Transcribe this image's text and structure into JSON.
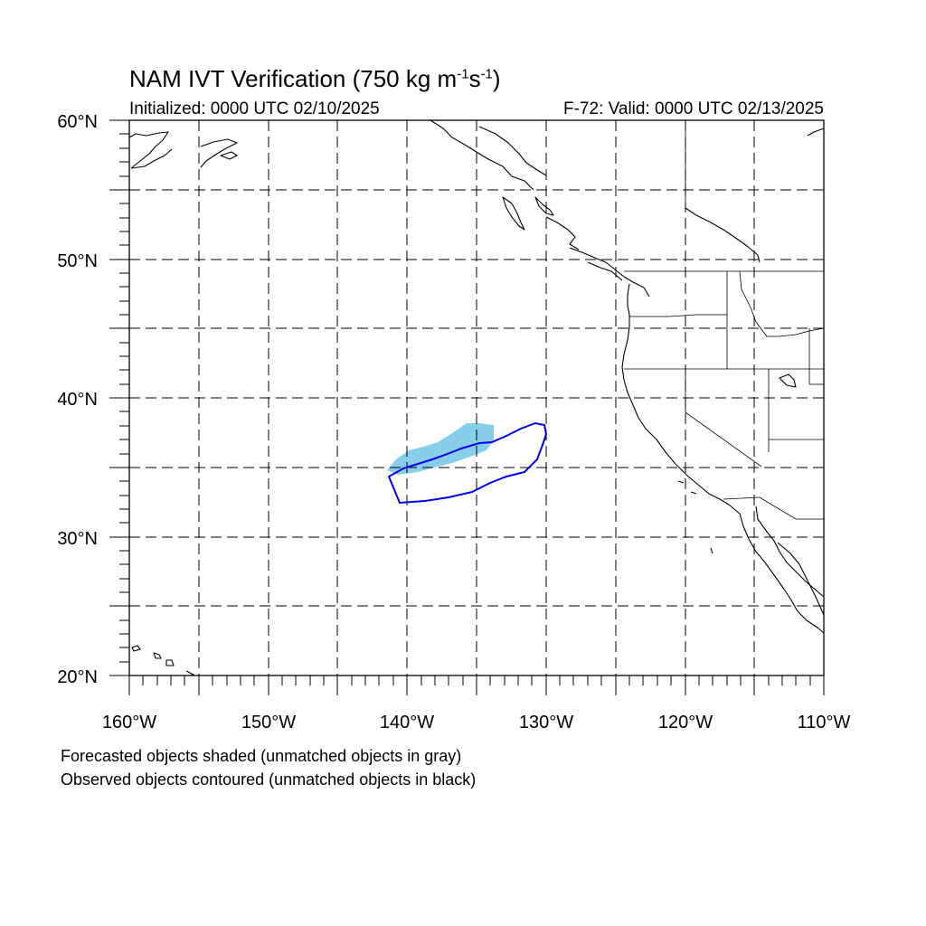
{
  "title": {
    "main": "NAM IVT Verification (750 kg m",
    "exp1": "-1",
    "mid": "s",
    "exp2": "-1",
    "close": ")"
  },
  "initialized": "Initialized: 0000 UTC 02/10/2025",
  "valid": "F-72: Valid: 0000 UTC 02/13/2025",
  "notes": {
    "forecast": "Forecasted objects shaded (unmatched objects in gray)",
    "observed": "Observed objects contoured (unmatched objects in black)"
  },
  "map": {
    "lon_range": [
      -160,
      -110
    ],
    "lat_range": [
      20,
      60
    ],
    "grid_spacing_deg": 5,
    "lat_labels": [
      "60°N",
      "50°N",
      "40°N",
      "30°N",
      "20°N"
    ],
    "lon_labels": [
      "160°W",
      "150°W",
      "140°W",
      "130°W",
      "120°W",
      "110°W"
    ],
    "forecast_fill_color": "#87CEEB",
    "observed_contour_color": "#0000EE",
    "coast_color": "#000000",
    "grid_style": "dashed"
  }
}
